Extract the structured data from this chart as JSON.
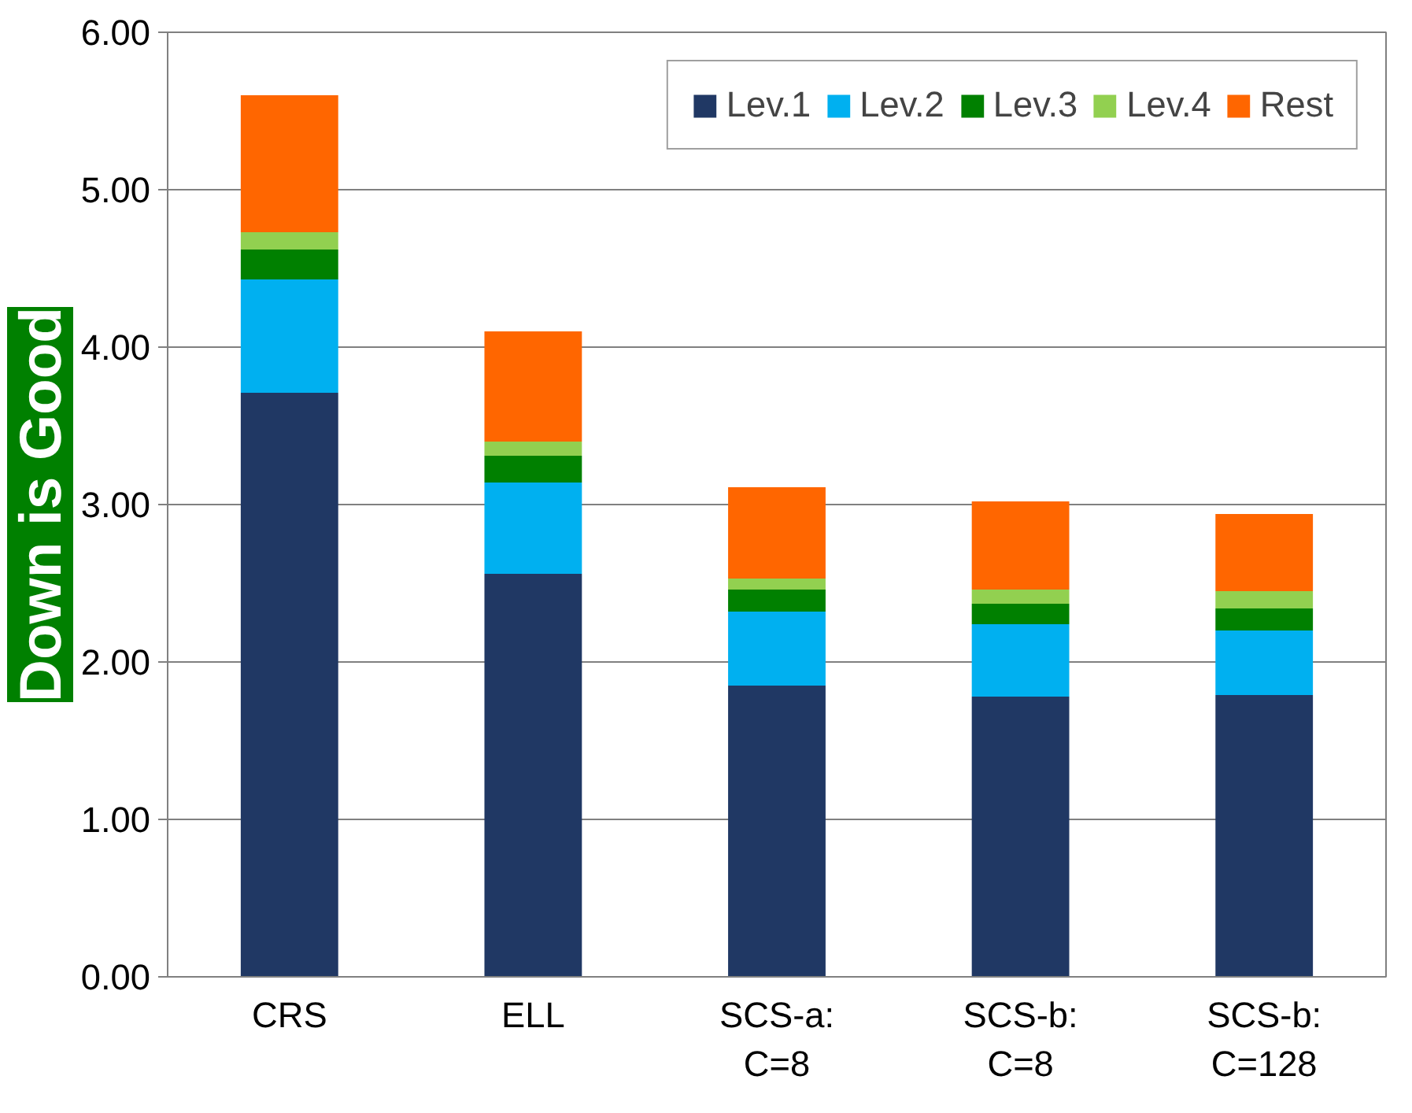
{
  "chart_data": {
    "type": "bar",
    "stacked": true,
    "categories": [
      "CRS",
      "ELL",
      "SCS-a:\nC=8",
      "SCS-b:\nC=8",
      "SCS-b:\nC=128"
    ],
    "series": [
      {
        "name": "Lev.1",
        "color": "#203864",
        "values": [
          3.71,
          2.56,
          1.85,
          1.78,
          1.79
        ]
      },
      {
        "name": "Lev.2",
        "color": "#00b0f0",
        "values": [
          0.72,
          0.58,
          0.47,
          0.46,
          0.41
        ]
      },
      {
        "name": "Lev.3",
        "color": "#008000",
        "values": [
          0.19,
          0.17,
          0.14,
          0.13,
          0.14
        ]
      },
      {
        "name": "Lev.4",
        "color": "#92d050",
        "values": [
          0.11,
          0.09,
          0.07,
          0.09,
          0.11
        ]
      },
      {
        "name": "Rest",
        "color": "#ff6600",
        "values": [
          0.87,
          0.7,
          0.58,
          0.56,
          0.49
        ]
      }
    ],
    "ylim": [
      0,
      6
    ],
    "yticks": [
      {
        "value": 0,
        "label": "0.00"
      },
      {
        "value": 1,
        "label": "1.00"
      },
      {
        "value": 2,
        "label": "2.00"
      },
      {
        "value": 3,
        "label": "3.00"
      },
      {
        "value": 4,
        "label": "4.00"
      },
      {
        "value": 5,
        "label": "5.00"
      },
      {
        "value": 6,
        "label": "6.00"
      }
    ],
    "grid": "y",
    "legend": "top right",
    "annotations": [
      "Down is Good"
    ]
  }
}
